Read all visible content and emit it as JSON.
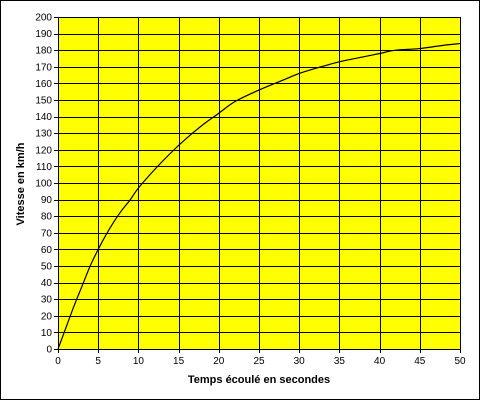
{
  "chart_data": {
    "type": "line",
    "title": "",
    "xlabel": "Temps écoulé en secondes",
    "ylabel": "Vitesse en km/h",
    "xlim": [
      0,
      50
    ],
    "ylim": [
      0,
      200
    ],
    "x_ticks": [
      0,
      5,
      10,
      15,
      20,
      25,
      30,
      35,
      40,
      45,
      50
    ],
    "y_ticks": [
      0,
      10,
      20,
      30,
      40,
      50,
      60,
      70,
      80,
      90,
      100,
      110,
      120,
      130,
      140,
      150,
      160,
      170,
      180,
      190,
      200
    ],
    "grid": true,
    "legend": "none",
    "plot_background": "#ffff00",
    "line_color": "#000000",
    "series": [
      {
        "x": [
          0,
          1,
          2,
          3,
          4,
          5,
          6,
          7,
          8,
          9,
          10,
          12,
          14,
          16,
          18,
          20,
          22,
          25,
          28,
          30,
          32,
          35,
          38,
          40,
          42,
          45,
          48,
          50
        ],
        "values": [
          0,
          13,
          26,
          38,
          50,
          60,
          69,
          77,
          84,
          90,
          97,
          108,
          118,
          127,
          135,
          142,
          149,
          156,
          162,
          166,
          169,
          173,
          176,
          178,
          180,
          181,
          183,
          184
        ]
      }
    ]
  }
}
